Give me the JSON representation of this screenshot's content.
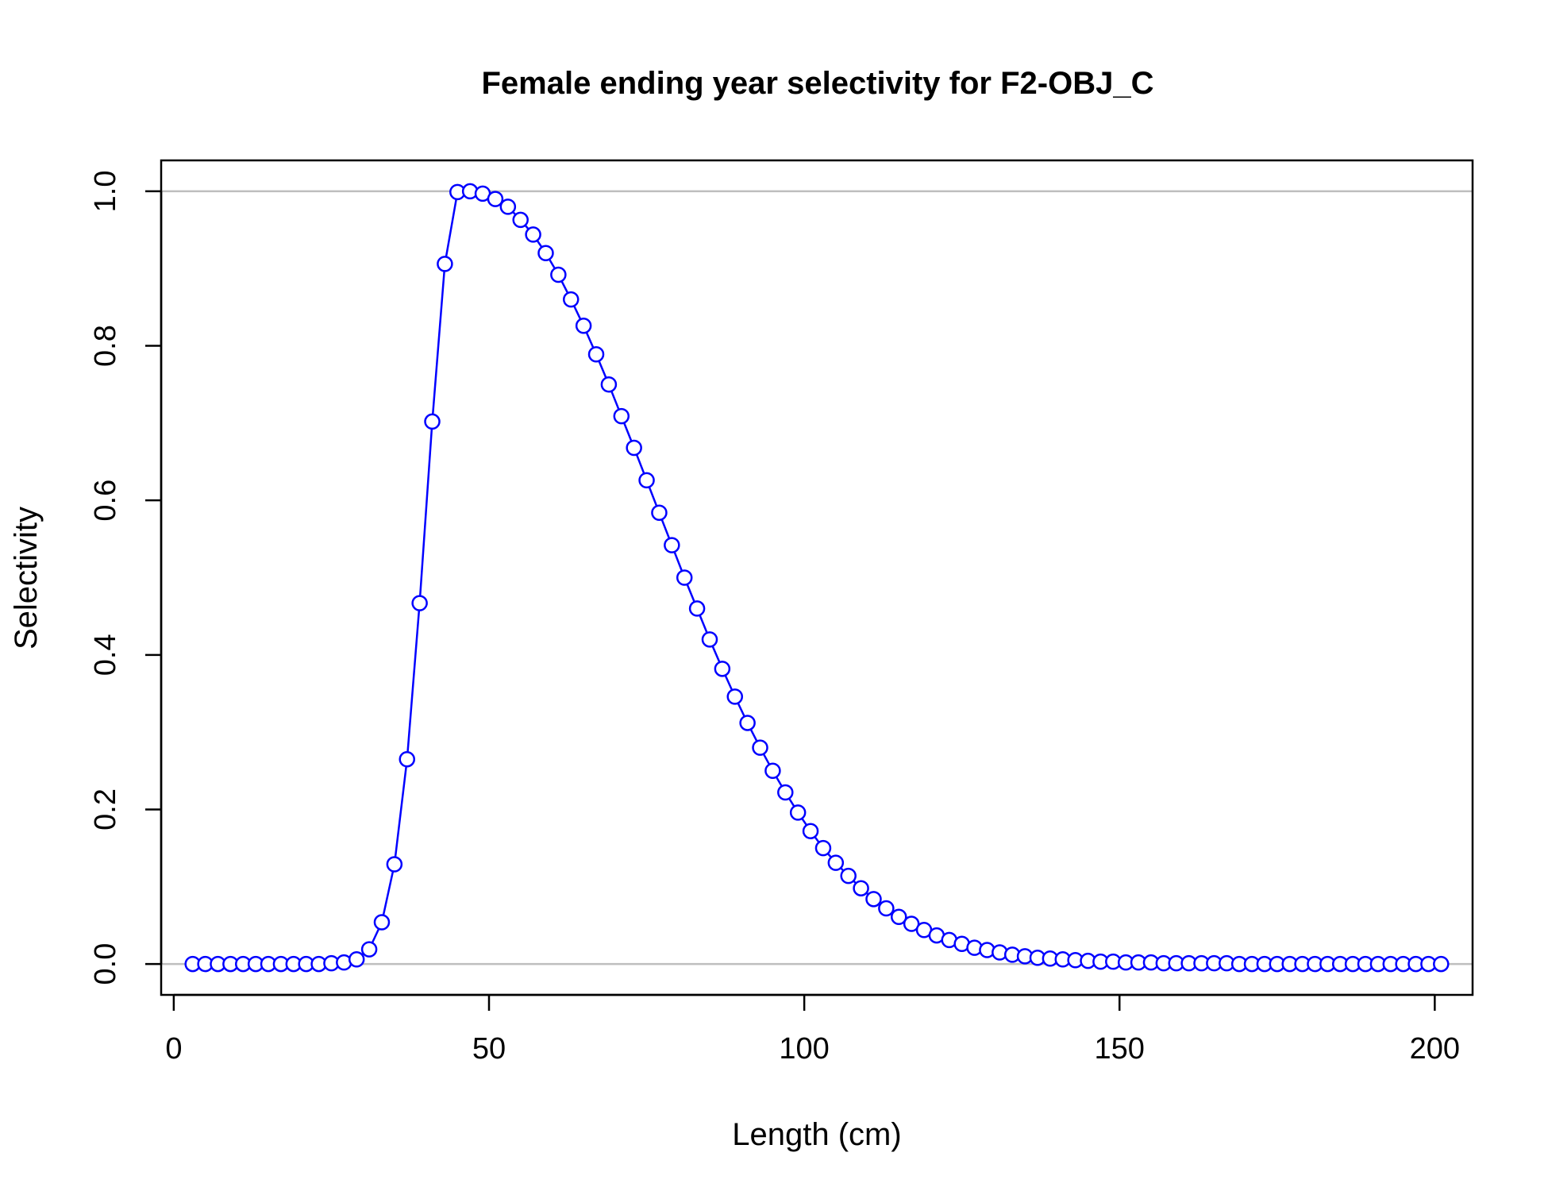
{
  "chart_data": {
    "type": "line",
    "title": "Female ending year selectivity for F2-OBJ_C",
    "xlabel": "Length (cm)",
    "ylabel": "Selectivity",
    "xlim": [
      -2,
      206
    ],
    "ylim": [
      -0.04,
      1.04
    ],
    "x_ticks": [
      0,
      50,
      100,
      150,
      200
    ],
    "y_ticks": [
      0.0,
      0.2,
      0.4,
      0.6,
      0.8,
      1.0
    ],
    "x_tick_labels": [
      "0",
      "50",
      "100",
      "150",
      "200"
    ],
    "y_tick_labels": [
      "0.0",
      "0.2",
      "0.4",
      "0.6",
      "0.8",
      "1.0"
    ],
    "reference_lines": [
      0,
      1
    ],
    "grid": false,
    "line_color": "#0000ff",
    "reference_color": "#bebebe",
    "marker": "open-circle",
    "series": [
      {
        "x": [
          3,
          5,
          7,
          9,
          11,
          13,
          15,
          17,
          19,
          21,
          23,
          25,
          27,
          29,
          31,
          33,
          35,
          37,
          39,
          41,
          43,
          45,
          47,
          49,
          51,
          53,
          55,
          57,
          59,
          61,
          63,
          65,
          67,
          69,
          71,
          73,
          75,
          77,
          79,
          81,
          83,
          85,
          87,
          89,
          91,
          93,
          95,
          97,
          99,
          101,
          103,
          105,
          107,
          109,
          111,
          113,
          115,
          117,
          119,
          121,
          123,
          125,
          127,
          129,
          131,
          133,
          135,
          137,
          139,
          141,
          143,
          145,
          147,
          149,
          151,
          153,
          155,
          157,
          159,
          161,
          163,
          165,
          167,
          169,
          171,
          173,
          175,
          177,
          179,
          181,
          183,
          185,
          187,
          189,
          191,
          193,
          195,
          197,
          199,
          201
        ],
        "values": [
          0,
          0,
          0,
          0,
          0,
          0,
          0,
          0,
          0,
          0,
          0,
          0.001,
          0.002,
          0.006,
          0.019,
          0.054,
          0.129,
          0.265,
          0.467,
          0.702,
          0.906,
          0.999,
          1.0,
          0.997,
          0.99,
          0.98,
          0.963,
          0.944,
          0.92,
          0.892,
          0.86,
          0.826,
          0.789,
          0.75,
          0.709,
          0.668,
          0.626,
          0.584,
          0.542,
          0.5,
          0.46,
          0.42,
          0.382,
          0.346,
          0.312,
          0.28,
          0.25,
          0.222,
          0.196,
          0.172,
          0.15,
          0.131,
          0.114,
          0.098,
          0.084,
          0.072,
          0.061,
          0.052,
          0.044,
          0.037,
          0.031,
          0.026,
          0.021,
          0.018,
          0.015,
          0.012,
          0.01,
          0.008,
          0.007,
          0.006,
          0.005,
          0.004,
          0.003,
          0.003,
          0.002,
          0.002,
          0.002,
          0.001,
          0.001,
          0.001,
          0.001,
          0.001,
          0.001,
          0,
          0,
          0,
          0,
          0,
          0,
          0,
          0,
          0,
          0,
          0,
          0,
          0,
          0,
          0,
          0,
          0
        ]
      }
    ]
  }
}
